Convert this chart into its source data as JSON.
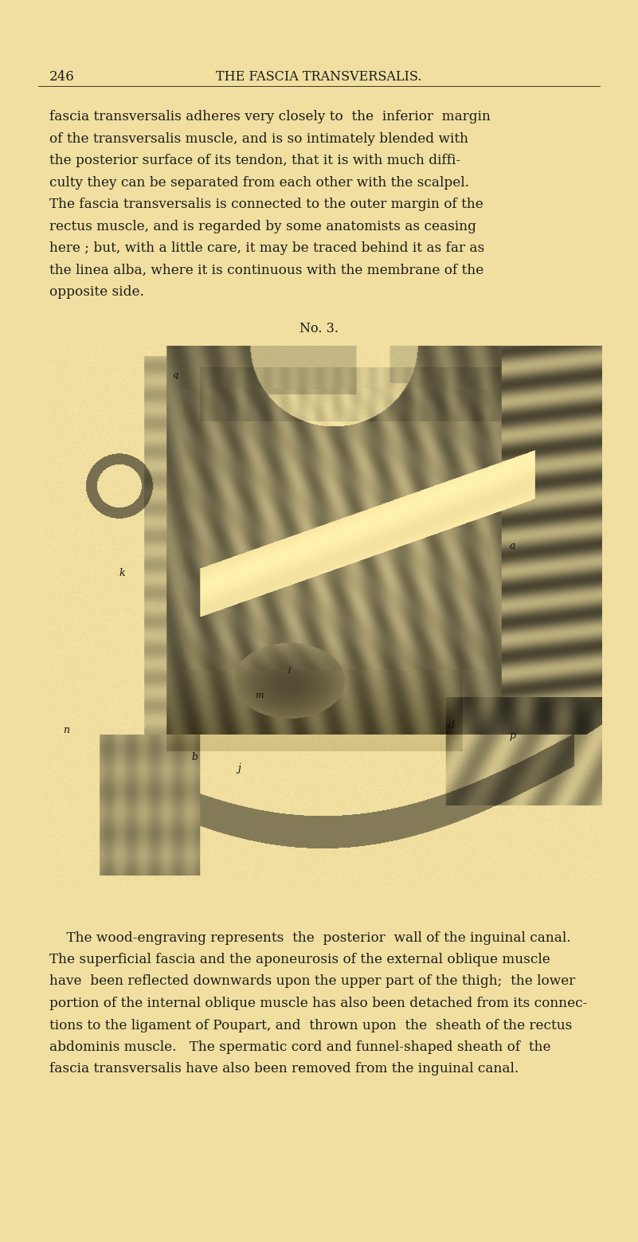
{
  "bg_color": "#f0dfa0",
  "page_number": "246",
  "header_title": "THE FASCIA TRANSVERSALIS.",
  "header_fontsize": 11.5,
  "page_num_fontsize": 12,
  "body_text_1_lines": [
    "fascia transversalis adheres very closely to  the  inferior  margin",
    "of the transversalis muscle, and is so intimately blended with",
    "the posterior surface of its tendon, that it is with much diffi-",
    "culty they can be separated from each other with the scalpel.",
    "The fascia transversalis is connected to the outer margin of the",
    "rectus muscle, and is regarded by some anatomists as ceasing",
    "here ; but, with a little care, it may be traced behind it as far as",
    "the linea alba, where it is continuous with the membrane of the",
    "opposite side."
  ],
  "figure_caption": "No. 3.",
  "body_text_2_lines": [
    "    The wood-engraving represents  the  posterior  wall of the inguinal canal.",
    "The superficial fascia and the aponeurosis of the external oblique muscle",
    "have  been reflected downwards upon the upper part of the thigh;  the lower",
    "portion of the internal oblique muscle has also been detached from its connec-",
    "tions to the ligament of Poupart, and  thrown upon  the  sheath of the rectus",
    "abdominis muscle.   The spermatic cord and funnel-shaped sheath of  the",
    "fascia transversalis have also been removed from the inguinal canal."
  ],
  "text_color": "#1a1a1a",
  "text_fontsize": 12.2,
  "caption_fontsize": 11.5,
  "bg_r": 0.941,
  "bg_g": 0.875,
  "bg_b": 0.627
}
